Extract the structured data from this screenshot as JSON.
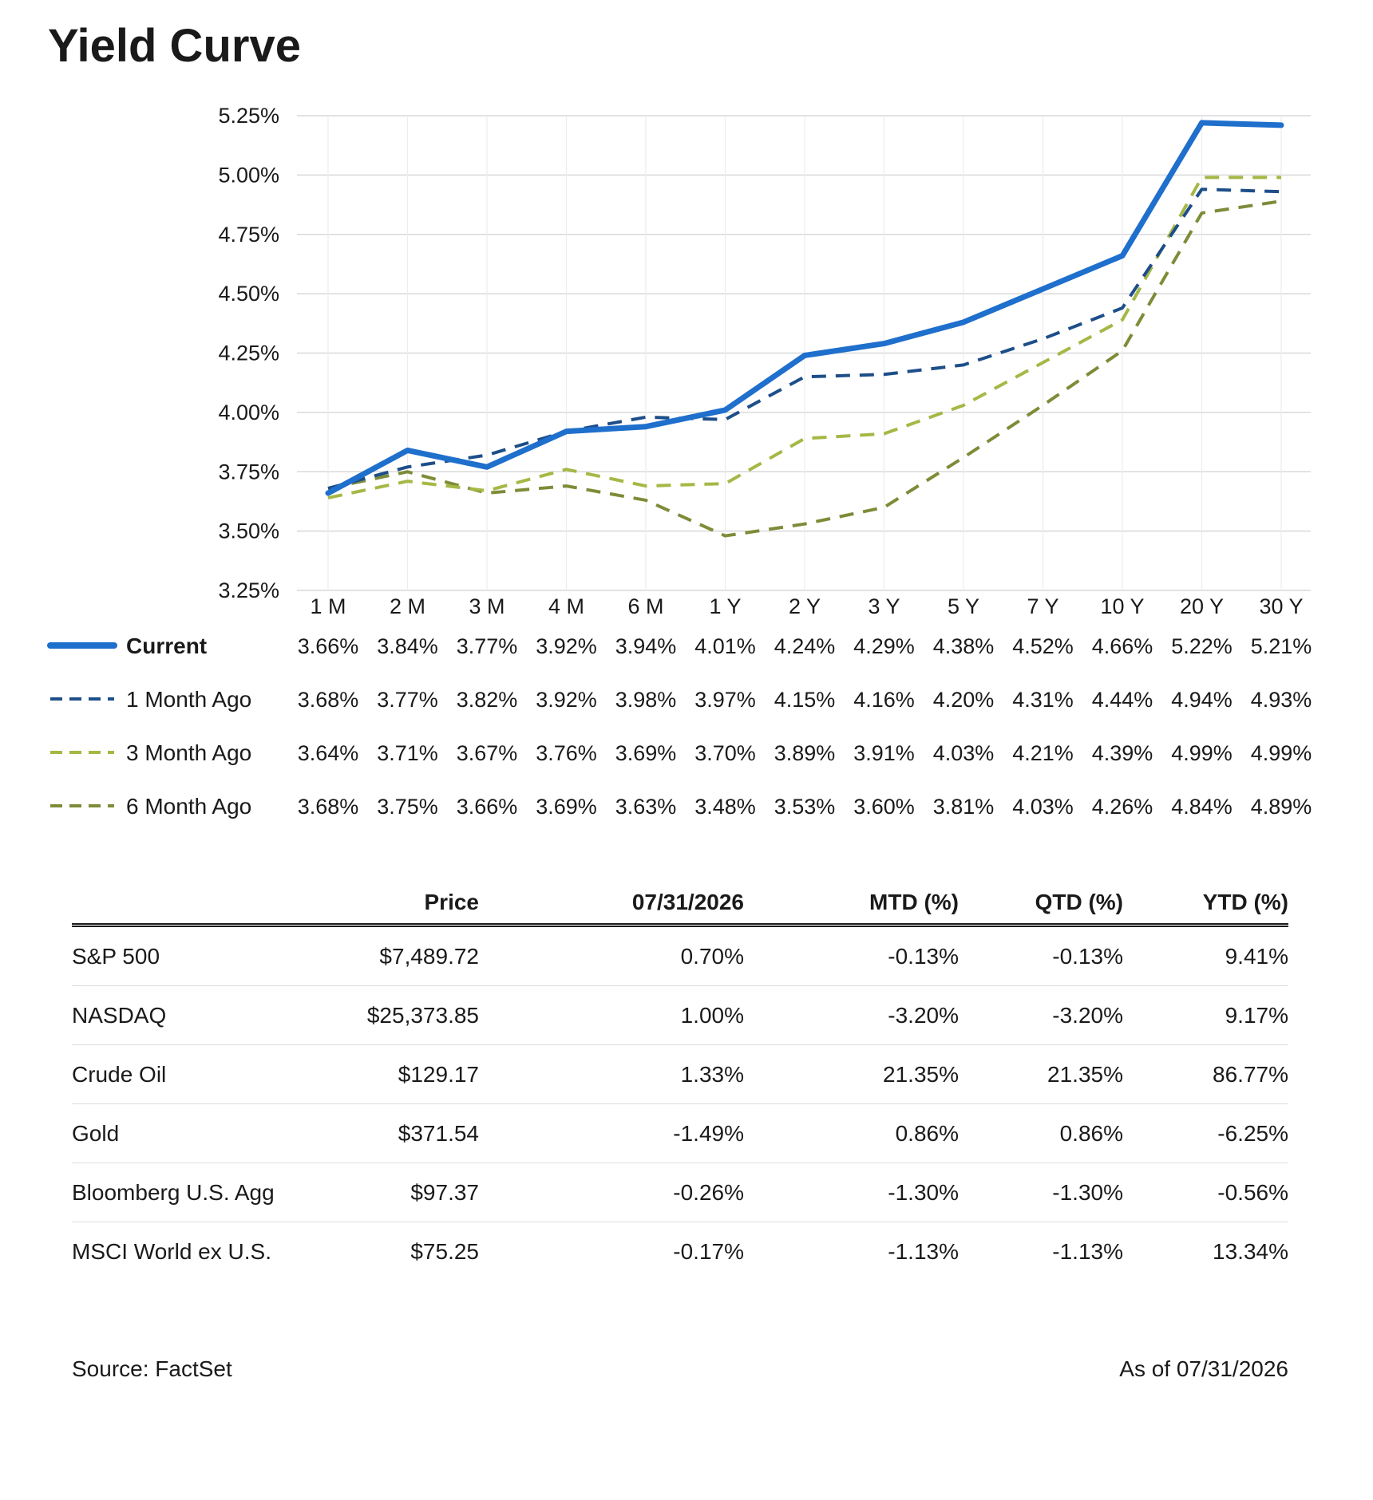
{
  "title": "Yield Curve",
  "chart_data": {
    "type": "line",
    "categories": [
      "1 M",
      "2 M",
      "3 M",
      "4 M",
      "6 M",
      "1 Y",
      "2 Y",
      "3 Y",
      "5 Y",
      "7 Y",
      "10 Y",
      "20 Y",
      "30 Y"
    ],
    "y_ticks": [
      "5.25%",
      "5.00%",
      "4.75%",
      "4.50%",
      "4.25%",
      "4.00%",
      "3.75%",
      "3.50%",
      "3.25%"
    ],
    "ylim": [
      3.25,
      5.25
    ],
    "grid": true,
    "legend": "table-below",
    "series": [
      {
        "name": "Current",
        "color": "#1f6fcc",
        "style": "solid-thick",
        "values": [
          3.66,
          3.84,
          3.77,
          3.92,
          3.94,
          4.01,
          4.24,
          4.29,
          4.38,
          4.52,
          4.66,
          5.22,
          5.21
        ],
        "labels": [
          "3.66%",
          "3.84%",
          "3.77%",
          "3.92%",
          "3.94%",
          "4.01%",
          "4.24%",
          "4.29%",
          "4.38%",
          "4.52%",
          "4.66%",
          "5.22%",
          "5.21%"
        ]
      },
      {
        "name": "1 Month Ago",
        "color": "#1d4e89",
        "style": "dashed",
        "values": [
          3.68,
          3.77,
          3.82,
          3.92,
          3.98,
          3.97,
          4.15,
          4.16,
          4.2,
          4.31,
          4.44,
          4.94,
          4.93
        ],
        "labels": [
          "3.68%",
          "3.77%",
          "3.82%",
          "3.92%",
          "3.98%",
          "3.97%",
          "4.15%",
          "4.16%",
          "4.20%",
          "4.31%",
          "4.44%",
          "4.94%",
          "4.93%"
        ]
      },
      {
        "name": "3 Month Ago",
        "color": "#a5b845",
        "style": "dashed",
        "values": [
          3.64,
          3.71,
          3.67,
          3.76,
          3.69,
          3.7,
          3.89,
          3.91,
          4.03,
          4.21,
          4.39,
          4.99,
          4.99
        ],
        "labels": [
          "3.64%",
          "3.71%",
          "3.67%",
          "3.76%",
          "3.69%",
          "3.70%",
          "3.89%",
          "3.91%",
          "4.03%",
          "4.21%",
          "4.39%",
          "4.99%",
          "4.99%"
        ]
      },
      {
        "name": "6 Month Ago",
        "color": "#7d8c38",
        "style": "dashed",
        "values": [
          3.68,
          3.75,
          3.66,
          3.69,
          3.63,
          3.48,
          3.53,
          3.6,
          3.81,
          4.03,
          4.26,
          4.84,
          4.89
        ],
        "labels": [
          "3.68%",
          "3.75%",
          "3.66%",
          "3.69%",
          "3.63%",
          "3.48%",
          "3.53%",
          "3.60%",
          "3.81%",
          "4.03%",
          "4.26%",
          "4.84%",
          "4.89%"
        ]
      }
    ]
  },
  "table": {
    "headers": [
      "",
      "Price",
      "07/31/2026",
      "MTD (%)",
      "QTD (%)",
      "YTD (%)"
    ],
    "rows": [
      [
        "S&P 500",
        "$7,489.72",
        "0.70%",
        "-0.13%",
        "-0.13%",
        "9.41%"
      ],
      [
        "NASDAQ",
        "$25,373.85",
        "1.00%",
        "-3.20%",
        "-3.20%",
        "9.17%"
      ],
      [
        "Crude Oil",
        "$129.17",
        "1.33%",
        "21.35%",
        "21.35%",
        "86.77%"
      ],
      [
        "Gold",
        "$371.54",
        "-1.49%",
        "0.86%",
        "0.86%",
        "-6.25%"
      ],
      [
        "Bloomberg U.S. Agg",
        "$97.37",
        "-0.26%",
        "-1.30%",
        "-1.30%",
        "-0.56%"
      ],
      [
        "MSCI World ex U.S.",
        "$75.25",
        "-0.17%",
        "-1.13%",
        "-1.13%",
        "13.34%"
      ]
    ]
  },
  "footer": {
    "source": "Source: FactSet",
    "as_of": "As of 07/31/2026"
  }
}
